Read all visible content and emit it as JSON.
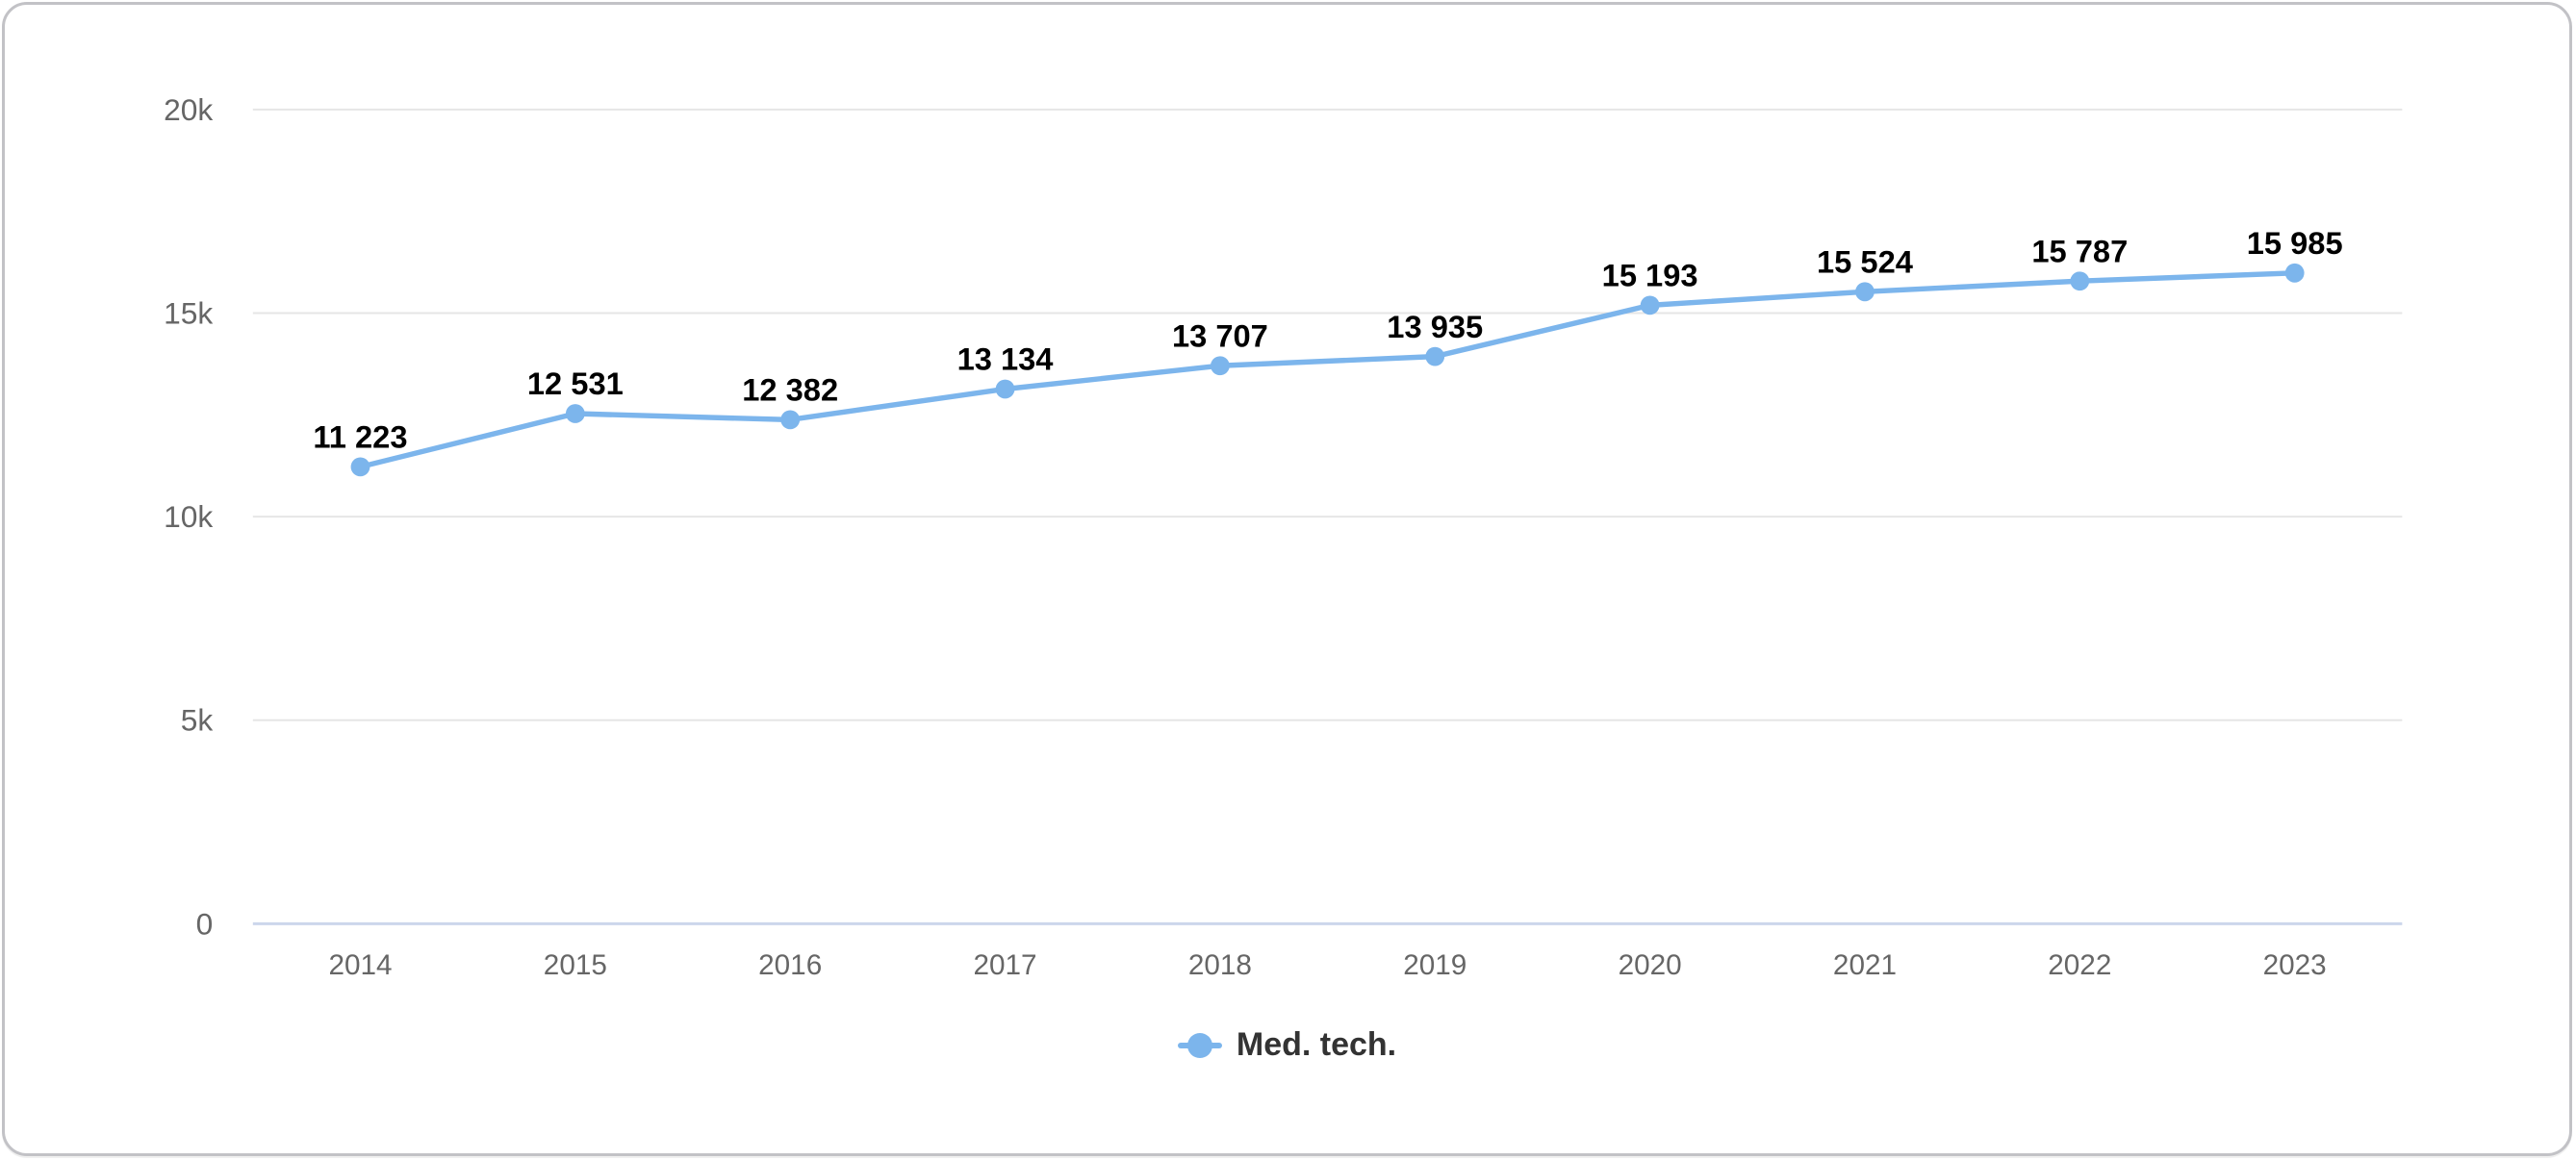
{
  "chart_data": {
    "type": "line",
    "title": "",
    "xlabel": "",
    "ylabel": "",
    "categories": [
      "2014",
      "2015",
      "2016",
      "2017",
      "2018",
      "2019",
      "2020",
      "2021",
      "2022",
      "2023"
    ],
    "series": [
      {
        "name": "Med. tech.",
        "color": "#7cb5ec",
        "values": [
          11223,
          12531,
          12382,
          13134,
          13707,
          13935,
          15193,
          15524,
          15787,
          15985
        ],
        "data_labels": [
          "11 223",
          "12 531",
          "12 382",
          "13 134",
          "13 707",
          "13 935",
          "15 193",
          "15 524",
          "15 787",
          "15 985"
        ]
      }
    ],
    "ylim": [
      0,
      20000
    ],
    "yticks": [
      {
        "value": 0,
        "label": "0"
      },
      {
        "value": 5000,
        "label": "5k"
      },
      {
        "value": 10000,
        "label": "10k"
      },
      {
        "value": 15000,
        "label": "15k"
      },
      {
        "value": 20000,
        "label": "20k"
      }
    ],
    "grid": true,
    "legend_position": "bottom-center",
    "colors": {
      "line": "#7cb5ec",
      "marker": "#7cb5ec",
      "grid_line": "#e6e6e6",
      "axis_line": "#ccd6eb",
      "tick_label": "#666666",
      "data_label": "#000000",
      "legend_text": "#333333"
    }
  },
  "legend": {
    "items": [
      {
        "label": "Med. tech."
      }
    ]
  }
}
